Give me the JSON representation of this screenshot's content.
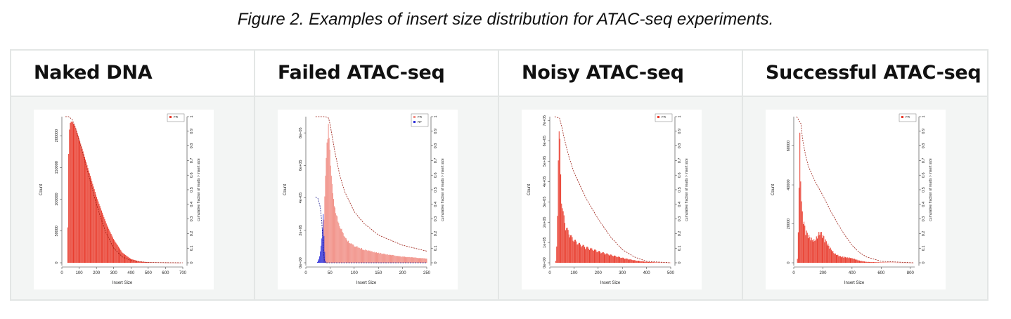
{
  "caption": "Figure 2. Examples of insert size distribution for ATAC-seq experiments.",
  "panels": [
    {
      "title": "Naked DNA"
    },
    {
      "title": "Failed ATAC-seq"
    },
    {
      "title": "Noisy ATAC-seq"
    },
    {
      "title": "Successful ATAC-seq"
    }
  ],
  "chart_data": [
    {
      "type": "bar",
      "title": "Naked DNA",
      "xlabel": "Insert Size",
      "ylabel": "Count",
      "y2label": "cumulative fraction of reads > insert size",
      "xlim": [
        0,
        700
      ],
      "ylim": [
        0,
        230000
      ],
      "y2lim": [
        0,
        1
      ],
      "xticks": [
        "0",
        "100",
        "200",
        "300",
        "400",
        "500",
        "600",
        "700"
      ],
      "yticks": [
        "0",
        "50000",
        "100000",
        "150000",
        "200000"
      ],
      "y2ticks": [
        "0",
        "0.1",
        "0.2",
        "0.3",
        "0.4",
        "0.5",
        "0.6",
        "0.7",
        "0.8",
        "0.9",
        "1"
      ],
      "series": [
        {
          "name": "FR",
          "color": "#e8392a",
          "x": [
            30,
            35,
            40,
            45,
            50,
            60,
            70,
            80,
            100,
            120,
            150,
            180,
            200,
            230,
            260,
            300,
            350,
            400,
            450,
            500,
            550,
            600,
            650,
            680
          ],
          "values": [
            0,
            60000,
            190000,
            215000,
            222000,
            222000,
            218000,
            212000,
            195000,
            178000,
            150000,
            123000,
            105000,
            82000,
            60000,
            37000,
            16000,
            6000,
            2000,
            800,
            300,
            150,
            80,
            40
          ]
        }
      ],
      "cumulative": {
        "x": [
          20,
          40,
          60,
          80,
          100,
          150,
          200,
          250,
          300,
          350,
          400,
          500,
          700
        ],
        "values": [
          1,
          1,
          0.98,
          0.92,
          0.84,
          0.62,
          0.4,
          0.22,
          0.1,
          0.04,
          0.015,
          0.002,
          0
        ]
      }
    },
    {
      "type": "bar",
      "title": "Failed ATAC-seq",
      "xlabel": "Insert Size",
      "ylabel": "Count",
      "y2label": "cumulative fraction of reads > insert size",
      "xlim": [
        0,
        250
      ],
      "ylim": [
        0,
        900000
      ],
      "y2lim": [
        0,
        1
      ],
      "xticks": [
        "0",
        "50",
        "100",
        "150",
        "200",
        "250"
      ],
      "yticks": [
        "0e+00",
        "2e+05",
        "4e+05",
        "6e+05",
        "8e+05"
      ],
      "y2ticks": [
        "0",
        "0.1",
        "0.2",
        "0.3",
        "0.4",
        "0.5",
        "0.6",
        "0.7",
        "0.8",
        "0.9",
        "1"
      ],
      "series": [
        {
          "name": "FR",
          "color": "#f08a80",
          "x": [
            36,
            40,
            44,
            47,
            50,
            55,
            60,
            65,
            70,
            80,
            90,
            100,
            120,
            140,
            160,
            180,
            200,
            220,
            240,
            250
          ],
          "values": [
            150000,
            500000,
            820000,
            860000,
            700000,
            480000,
            350000,
            300000,
            240000,
            170000,
            130000,
            110000,
            85000,
            70000,
            58000,
            48000,
            40000,
            35000,
            30000,
            28000
          ]
        },
        {
          "name": "RF",
          "color": "#2a2ad8",
          "x": [
            24,
            28,
            31,
            34,
            36,
            38,
            40,
            42
          ],
          "values": [
            5000,
            30000,
            90000,
            180000,
            300000,
            120000,
            15000,
            0
          ]
        }
      ],
      "cumulative": {
        "x": [
          20,
          40,
          47,
          50,
          60,
          70,
          80,
          100,
          120,
          150,
          200,
          250
        ],
        "values": [
          1,
          1,
          0.99,
          0.95,
          0.76,
          0.6,
          0.49,
          0.35,
          0.27,
          0.19,
          0.12,
          0.08
        ]
      },
      "cumulative_rf": {
        "x": [
          20,
          25,
          30,
          33,
          36,
          38,
          40,
          50,
          250
        ],
        "values": [
          0.45,
          0.44,
          0.38,
          0.28,
          0.1,
          0.02,
          0,
          0,
          0
        ]
      }
    },
    {
      "type": "bar",
      "title": "Noisy ATAC-seq",
      "xlabel": "Insert Size",
      "ylabel": "Count",
      "y2label": "cumulative fraction of reads > insert size",
      "xlim": [
        0,
        500
      ],
      "ylim": [
        0,
        720000
      ],
      "y2lim": [
        0,
        1
      ],
      "xticks": [
        "0",
        "100",
        "200",
        "300",
        "400",
        "500"
      ],
      "yticks": [
        "0e+00",
        "1e+05",
        "2e+05",
        "3e+05",
        "4e+05",
        "5e+05",
        "6e+05",
        "7e+05"
      ],
      "y2ticks": [
        "0",
        "0.1",
        "0.2",
        "0.3",
        "0.4",
        "0.5",
        "0.6",
        "0.7",
        "0.8",
        "0.9",
        "1"
      ],
      "series": [
        {
          "name": "FR",
          "color": "#e8392a",
          "x": [
            25,
            30,
            35,
            40,
            45,
            50,
            55,
            60,
            65,
            70,
            80,
            90,
            100,
            120,
            150,
            180,
            200,
            250,
            300,
            350,
            400,
            450,
            500
          ],
          "values": [
            10000,
            120000,
            560000,
            700000,
            480000,
            320000,
            260000,
            230000,
            200000,
            180000,
            155000,
            135000,
            120000,
            100000,
            82000,
            70000,
            60000,
            42000,
            26000,
            13000,
            5000,
            1500,
            500
          ]
        }
      ],
      "cumulative": {
        "x": [
          20,
          40,
          50,
          60,
          80,
          100,
          150,
          200,
          250,
          300,
          350,
          400,
          500
        ],
        "values": [
          1,
          0.99,
          0.93,
          0.85,
          0.72,
          0.62,
          0.44,
          0.3,
          0.18,
          0.09,
          0.04,
          0.01,
          0
        ]
      }
    },
    {
      "type": "bar",
      "title": "Successful ATAC-seq",
      "xlabel": "Insert Size",
      "ylabel": "Count",
      "y2label": "cumulative fraction of reads > insert size",
      "xlim": [
        0,
        830
      ],
      "ylim": [
        0,
        75000
      ],
      "y2lim": [
        0,
        1
      ],
      "xticks": [
        "0",
        "200",
        "400",
        "600",
        "800"
      ],
      "yticks": [
        "0",
        "20000",
        "40000",
        "60000"
      ],
      "y2ticks": [
        "0",
        "0.1",
        "0.2",
        "0.3",
        "0.4",
        "0.5",
        "0.6",
        "0.7",
        "0.8",
        "0.9",
        "1"
      ],
      "series": [
        {
          "name": "FR",
          "color": "#e8392a",
          "x": [
            25,
            35,
            40,
            45,
            50,
            55,
            60,
            70,
            80,
            100,
            120,
            140,
            160,
            180,
            200,
            220,
            250,
            280,
            320,
            360,
            400,
            450,
            500,
            600,
            700,
            820
          ],
          "values": [
            2000,
            30000,
            72000,
            60000,
            40000,
            30000,
            26000,
            22000,
            18000,
            15000,
            13000,
            12000,
            14000,
            17000,
            15000,
            12000,
            8000,
            5000,
            3500,
            3000,
            2500,
            1200,
            500,
            200,
            80,
            30
          ]
        }
      ],
      "cumulative": {
        "x": [
          20,
          50,
          60,
          80,
          100,
          150,
          200,
          250,
          300,
          350,
          400,
          450,
          500,
          600,
          820
        ],
        "values": [
          1,
          0.95,
          0.85,
          0.74,
          0.66,
          0.55,
          0.46,
          0.36,
          0.27,
          0.19,
          0.12,
          0.07,
          0.04,
          0.01,
          0
        ]
      }
    }
  ]
}
